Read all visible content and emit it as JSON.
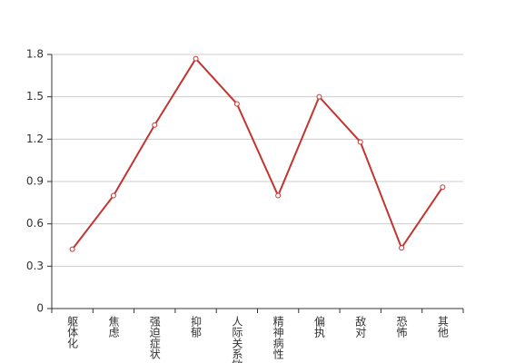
{
  "chart_data": {
    "type": "line",
    "categories": [
      "躯体化",
      "焦虑",
      "强迫症状",
      "抑郁",
      "人际关系敏感",
      "精神病性",
      "偏执",
      "敌对",
      "恐怖",
      "其他"
    ],
    "series": [
      {
        "color": "#c23531",
        "values": [
          0.42,
          0.8,
          1.3,
          1.77,
          1.45,
          0.8,
          1.5,
          1.18,
          0.43,
          0.86
        ]
      }
    ],
    "ylim": [
      0,
      1.8
    ],
    "yticks": [
      0,
      0.3,
      0.6,
      0.9,
      1.2,
      1.5,
      1.8
    ],
    "grid": true
  }
}
